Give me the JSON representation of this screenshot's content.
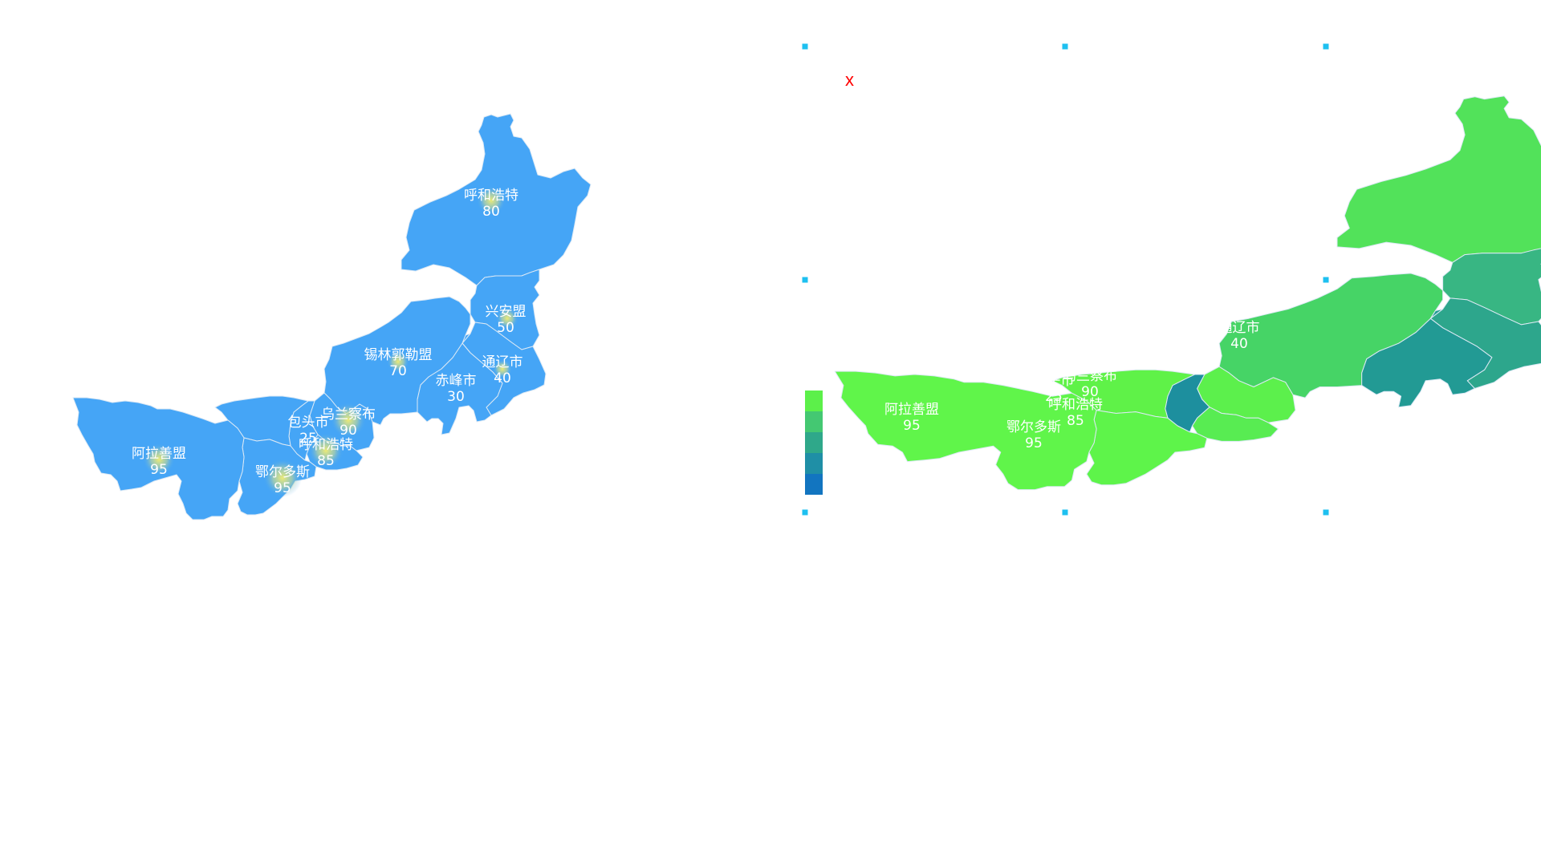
{
  "close_label": "x",
  "colors": {
    "left_map_fill": "#45a5f6",
    "border": "#dce9f5",
    "label": "#ffffff",
    "handle": "#1ec0f0",
    "close": "#ff0000",
    "glow_center": "#f0eb78"
  },
  "regions": [
    {
      "id": "hulunbuir",
      "name": "呼和浩特",
      "value": "80"
    },
    {
      "id": "xingan",
      "name": "兴安盟",
      "value": "50"
    },
    {
      "id": "tongliao",
      "name": "通辽市",
      "value": "40"
    },
    {
      "id": "chifeng",
      "name": "赤峰市",
      "value": "30"
    },
    {
      "id": "xilingol",
      "name": "锡林郭勒盟",
      "value": "70"
    },
    {
      "id": "ulanqab",
      "name": "乌兰察布",
      "value": "90"
    },
    {
      "id": "hohhot",
      "name": "呼和浩特",
      "value": "85"
    },
    {
      "id": "baotou",
      "name": "包头市",
      "value": "25"
    },
    {
      "id": "bayannur",
      "name": "",
      "value": ""
    },
    {
      "id": "ordos",
      "name": "鄂尔多斯",
      "value": "95"
    },
    {
      "id": "alxa",
      "name": "阿拉善盟",
      "value": "95"
    }
  ],
  "visual_map": {
    "pieces": [
      {
        "color": "#5cf04a"
      },
      {
        "color": "#44c872"
      },
      {
        "color": "#2fa88a"
      },
      {
        "color": "#1f8fa6"
      },
      {
        "color": "#1275c0"
      }
    ]
  },
  "right_fills": {
    "hulunbuir": "#52e25a",
    "xingan": "#38b683",
    "tongliao": "#2da68c",
    "chifeng": "#229a94",
    "xilingol": "#46d466",
    "ulanqab": "#5cf04c",
    "hohhot": "#58ec52",
    "baotou": "#1d8f9e",
    "bayannur": "#5ff248",
    "ordos": "#5ef44a",
    "alxa": "#60f54a"
  }
}
